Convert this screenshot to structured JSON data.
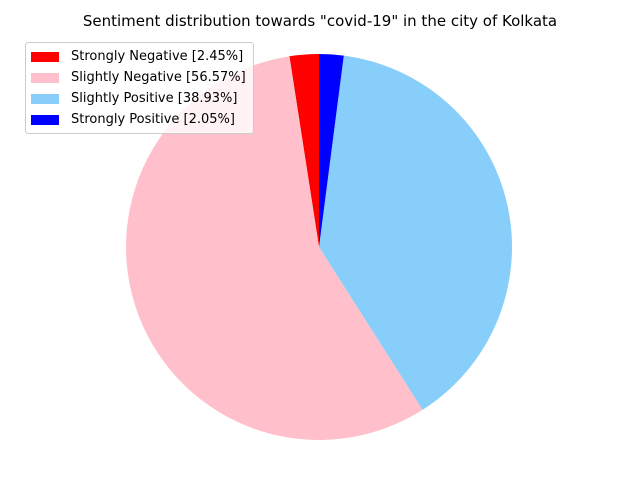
{
  "chart_data": {
    "type": "pie",
    "title": "Sentiment distribution towards \"covid-19\" in the city of Kolkata",
    "legend_placement": "top-left",
    "start_angle_deg": 90,
    "direction": "counterclockwise",
    "slices": [
      {
        "label": "Strongly Negative [2.45%]",
        "value": 2.45,
        "color": "#ff0000"
      },
      {
        "label": "Slightly Negative [56.57%]",
        "value": 56.57,
        "color": "#ffc0cb"
      },
      {
        "label": "Slightly Positive [38.93%]",
        "value": 38.93,
        "color": "#87cefa"
      },
      {
        "label": "Strongly Positive [2.05%]",
        "value": 2.05,
        "color": "#0000ff"
      }
    ]
  }
}
